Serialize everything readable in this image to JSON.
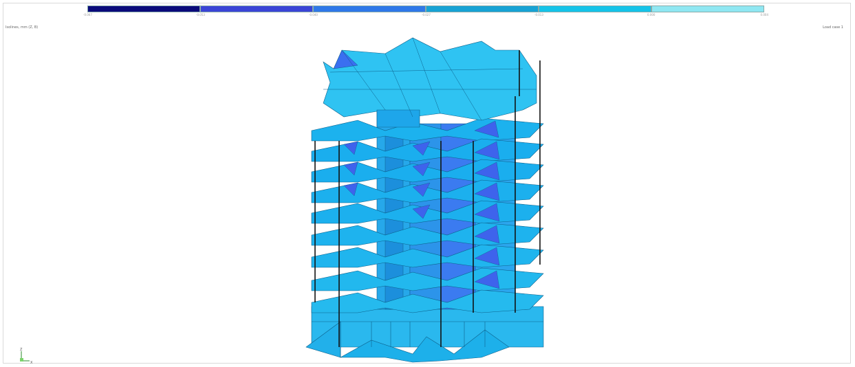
{
  "legend": {
    "segments": [
      {
        "color": "#0a0a7a"
      },
      {
        "color": "#3a44d6"
      },
      {
        "color": "#2f78e8"
      },
      {
        "color": "#17a2d4"
      },
      {
        "color": "#15c3e8"
      },
      {
        "color": "#8fe7f2"
      }
    ],
    "ticks": [
      "-0.067",
      "-0.053",
      "-0.040",
      "-0.027",
      "-0.013",
      "0.000",
      "0.004"
    ]
  },
  "captions": {
    "left": "Isolines, mm (Z, B)",
    "right": "Load case 1"
  },
  "colors": {
    "slab_light": "#2ec4f2",
    "slab_mid": "#1aa9e6",
    "slab_dark": "#3d6ff0",
    "edge": "#0d5f8a",
    "column": "#111111"
  },
  "axis": {
    "x_label": "X",
    "z_label": "Z"
  }
}
